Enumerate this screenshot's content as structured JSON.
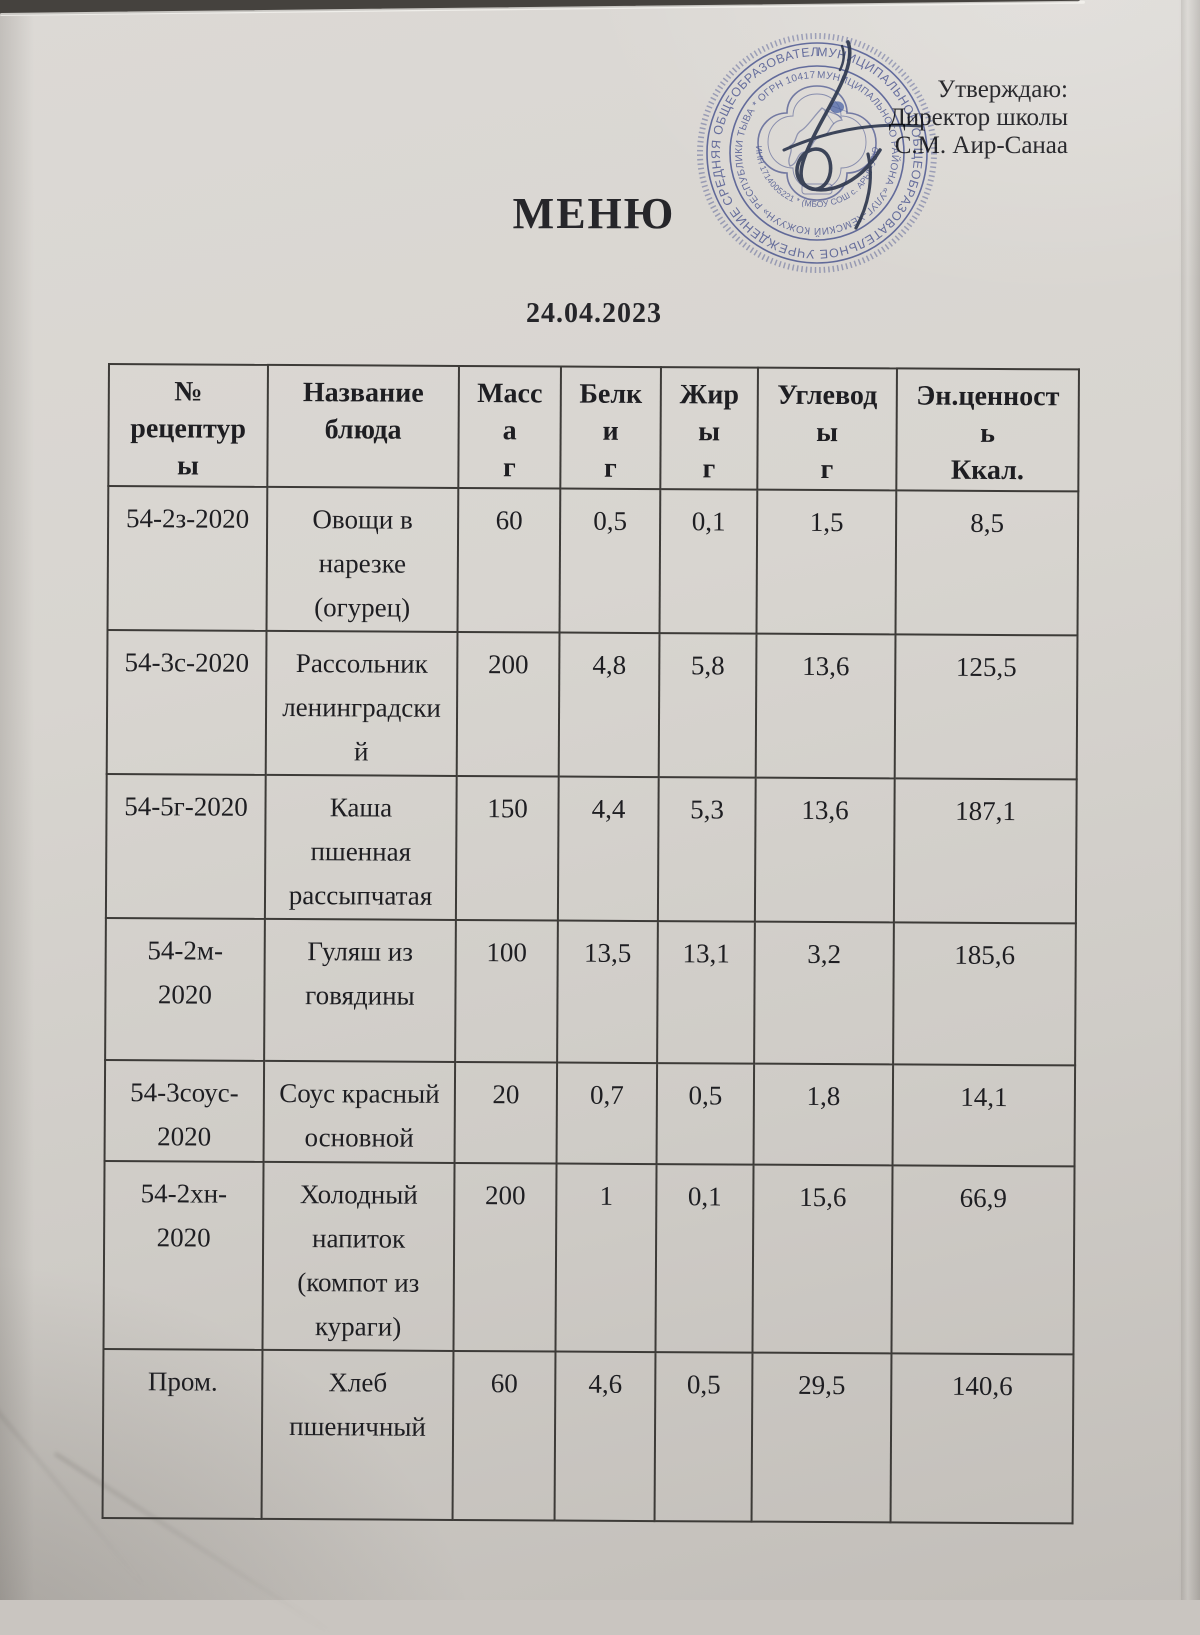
{
  "page": {
    "title": "МЕНЮ",
    "date": "24.04.2023",
    "approval": {
      "line1": "Утверждаю:",
      "line2": "Директор школы",
      "line3": "С.М. Аир-Санаа"
    }
  },
  "stamp": {
    "color": "#3f4fa0",
    "outer_text": "МУНИЦИПАЛЬНОЕ ОБЩЕОБРАЗОВАТЕЛЬНОЕ УЧРЕЖДЕНИЕ СРЕДНЯЯ ОБЩЕОБРАЗОВАТЕЛЬНАЯ ШКОЛА *",
    "middle_text": "МУНИЦИПАЛЬНОГО РАЙОНА «УЛУГ-ХЕМСКИЙ КОЖУУН» РЕСПУБЛИКИ ТЫВА * ОГРН 1041700 8946 *",
    "inner_text": "ИНН 1714005221 * (МБОУ СОШ с. АРЫГ-УЗЮНСКИЙ *"
  },
  "table": {
    "headers": [
      [
        "№",
        "рецептур",
        "ы"
      ],
      [
        "Название",
        "блюда"
      ],
      [
        "Масс",
        "а",
        "г"
      ],
      [
        "Белк",
        "и",
        "г"
      ],
      [
        "Жир",
        "ы",
        "г"
      ],
      [
        "Углевод",
        "ы",
        "г"
      ],
      [
        "Эн.ценност",
        "ь",
        "Ккал."
      ]
    ],
    "rows": [
      [
        "54-2з-2020",
        [
          "Овощи в",
          "нарезке",
          "(огурец)"
        ],
        "60",
        "0,5",
        "0,1",
        "1,5",
        "8,5"
      ],
      [
        "54-3с-2020",
        [
          "Рассольник",
          "ленинградски",
          "й"
        ],
        "200",
        "4,8",
        "5,8",
        "13,6",
        "125,5"
      ],
      [
        "54-5г-2020",
        [
          "Каша",
          "пшенная",
          "рассыпчатая"
        ],
        "150",
        "4,4",
        "5,3",
        "13,6",
        "187,1"
      ],
      [
        [
          "54-2м-",
          "2020"
        ],
        [
          "Гуляш из",
          "говядины"
        ],
        "100",
        "13,5",
        "13,1",
        "3,2",
        "185,6"
      ],
      [
        [
          "54-3соус-",
          "2020"
        ],
        [
          "Соус красный",
          "основной"
        ],
        "20",
        "0,7",
        "0,5",
        "1,8",
        "14,1"
      ],
      [
        [
          "54-2хн-",
          "2020"
        ],
        [
          "Холодный",
          "напиток",
          "(компот из",
          "кураги)"
        ],
        "200",
        "1",
        "0,1",
        "15,6",
        "66,9"
      ],
      [
        "Пром.",
        [
          "Хлеб",
          "пшеничный"
        ],
        "60",
        "4,6",
        "0,5",
        "29,5",
        "140,6"
      ]
    ]
  }
}
